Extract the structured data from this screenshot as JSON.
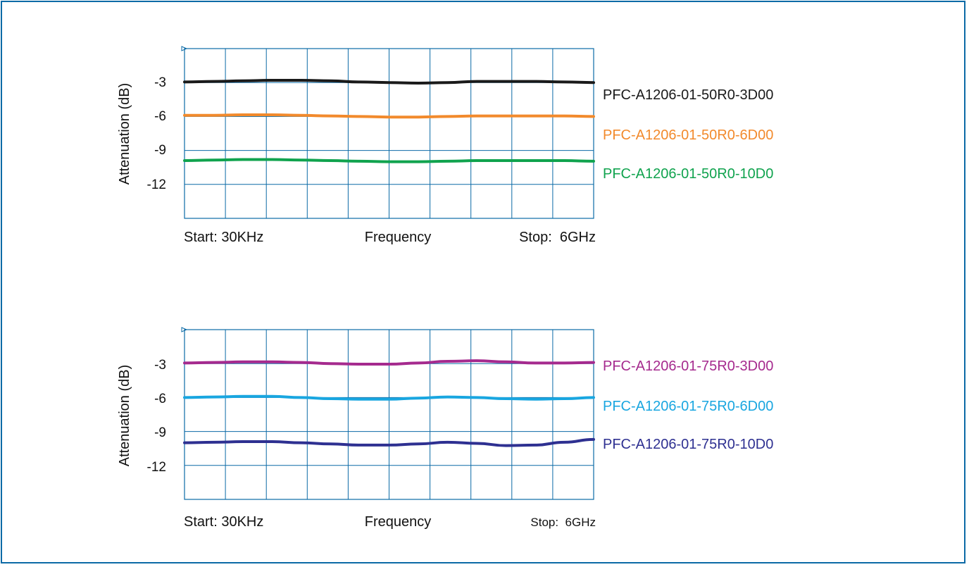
{
  "chart_data": [
    {
      "type": "line",
      "ylabel": "Attenuation (dB)",
      "xlabel": "Frequency",
      "x_start_label": "Start: 30KHz",
      "x_stop_label": "Stop:  6GHz",
      "y_ticks": [
        -3,
        -6,
        -9,
        -12
      ],
      "ylim": [
        -15,
        0
      ],
      "x_divisions": 10,
      "grid": true,
      "legend_position": "right",
      "series": [
        {
          "name": "PFC-A1206-01-50R0-3D00",
          "color": "#1a1a1a",
          "values": [
            -2.95,
            -2.9,
            -2.85,
            -2.8,
            -2.8,
            -2.85,
            -2.95,
            -3.0,
            -3.05,
            -3.0,
            -2.9,
            -2.9,
            -2.9,
            -2.95,
            -3.0
          ]
        },
        {
          "name": "PFC-A1206-01-50R0-6D00",
          "color": "#f28a2c",
          "values": [
            -5.9,
            -5.9,
            -5.85,
            -5.85,
            -5.9,
            -5.95,
            -6.0,
            -6.05,
            -6.05,
            -6.0,
            -5.95,
            -5.95,
            -5.95,
            -5.95,
            -6.0
          ]
        },
        {
          "name": "PFC-A1206-01-50R0-10D0",
          "color": "#10a34e",
          "values": [
            -9.9,
            -9.85,
            -9.8,
            -9.8,
            -9.85,
            -9.9,
            -9.95,
            -10.0,
            -10.0,
            -9.95,
            -9.9,
            -9.9,
            -9.9,
            -9.9,
            -9.95
          ]
        }
      ]
    },
    {
      "type": "line",
      "ylabel": "Attenuation (dB)",
      "xlabel": "Frequency",
      "x_start_label": "Start: 30KHz",
      "x_stop_label": "Stop:  6GHz",
      "y_ticks": [
        -3,
        -6,
        -9,
        -12
      ],
      "ylim": [
        -15,
        0
      ],
      "x_divisions": 10,
      "grid": true,
      "legend_position": "right",
      "series": [
        {
          "name": "PFC-A1206-01-75R0-3D00",
          "color": "#a52a8e",
          "values": [
            -2.95,
            -2.9,
            -2.85,
            -2.85,
            -2.9,
            -3.0,
            -3.05,
            -3.05,
            -2.95,
            -2.8,
            -2.75,
            -2.85,
            -2.95,
            -2.95,
            -2.9
          ]
        },
        {
          "name": "PFC-A1206-01-75R0-6D00",
          "color": "#19a6e0",
          "values": [
            -6.0,
            -5.95,
            -5.9,
            -5.9,
            -6.0,
            -6.1,
            -6.15,
            -6.15,
            -6.05,
            -5.95,
            -6.0,
            -6.1,
            -6.15,
            -6.1,
            -6.0
          ]
        },
        {
          "name": "PFC-A1206-01-75R0-10D0",
          "color": "#2e3091",
          "values": [
            -10.0,
            -9.95,
            -9.9,
            -9.9,
            -10.0,
            -10.1,
            -10.2,
            -10.2,
            -10.1,
            -9.95,
            -10.05,
            -10.25,
            -10.2,
            -9.95,
            -9.7
          ]
        }
      ]
    }
  ]
}
